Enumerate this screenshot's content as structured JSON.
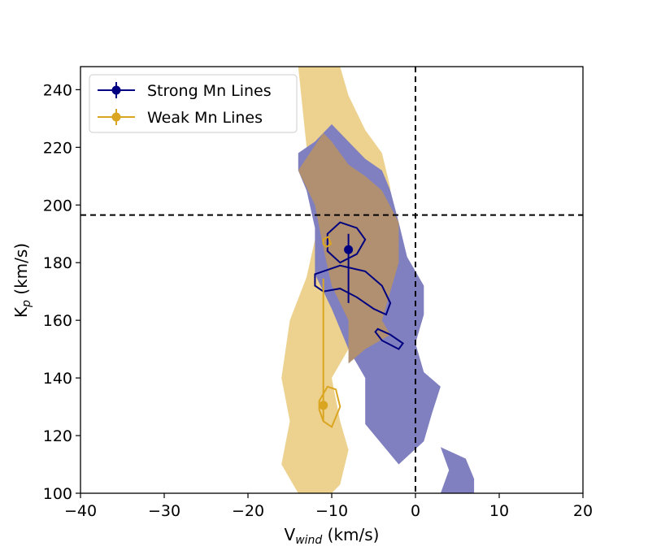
{
  "chart_data": {
    "type": "contour",
    "xlabel": "V",
    "xlabel_sub": "wind",
    "xlabel_unit": " (km/s)",
    "ylabel": "K",
    "ylabel_sub": "p",
    "ylabel_unit": " (km/s)",
    "xlim": [
      -40,
      20
    ],
    "ylim": [
      100,
      248
    ],
    "xticks": [
      -40,
      -30,
      -20,
      -10,
      0,
      10,
      20
    ],
    "xtick_labels": [
      "−40",
      "−30",
      "−20",
      "−10",
      "0",
      "10",
      "20"
    ],
    "yticks": [
      100,
      120,
      140,
      160,
      180,
      200,
      220,
      240
    ],
    "ytick_labels": [
      "100",
      "120",
      "140",
      "160",
      "180",
      "200",
      "220",
      "240"
    ],
    "reference_lines": {
      "vline_x": 0,
      "hline_y": 196.5
    },
    "legend": {
      "placement": "top-left"
    },
    "colors": {
      "strong": "#000080",
      "weak": "#DAA520",
      "strong_fill": "#8080C0",
      "weak_fill": "#EDD28F",
      "overlap_fill": "#B09070"
    },
    "series": [
      {
        "name": "Strong Mn Lines",
        "color": "#000080",
        "x": -8.0,
        "y": 184.5,
        "yerr_low": 18.5,
        "yerr_high": 5.5
      },
      {
        "name": "Weak Mn Lines",
        "color": "#DAA520",
        "x": -11.0,
        "y": 130.5,
        "yerr_low": 5.5,
        "yerr_high": 44.0
      }
    ],
    "regions": {
      "weak_band": [
        [
          -14,
          248
        ],
        [
          -9,
          248
        ],
        [
          -8,
          238
        ],
        [
          -6,
          226
        ],
        [
          -4,
          218
        ],
        [
          -3,
          206
        ],
        [
          -3,
          196
        ],
        [
          -5,
          186
        ],
        [
          -6,
          176
        ],
        [
          -8,
          160
        ],
        [
          -8,
          150
        ],
        [
          -10,
          140
        ],
        [
          -9,
          125
        ],
        [
          -8,
          115
        ],
        [
          -9,
          103
        ],
        [
          -10,
          100
        ],
        [
          -14,
          100
        ],
        [
          -16,
          110
        ],
        [
          -15,
          125
        ],
        [
          -16,
          140
        ],
        [
          -15,
          160
        ],
        [
          -13,
          175
        ],
        [
          -12,
          188
        ],
        [
          -12,
          205
        ],
        [
          -13,
          220
        ]
      ],
      "strong_band": [
        [
          -14,
          218
        ],
        [
          -12,
          222
        ],
        [
          -10,
          228
        ],
        [
          -8,
          222
        ],
        [
          -6,
          216
        ],
        [
          -4,
          212
        ],
        [
          -3,
          205
        ],
        [
          -2,
          194
        ],
        [
          -1,
          182
        ],
        [
          1,
          172
        ],
        [
          1,
          162
        ],
        [
          0,
          152
        ],
        [
          1,
          142
        ],
        [
          3,
          137
        ],
        [
          2,
          128
        ],
        [
          1,
          118
        ],
        [
          -2,
          110
        ],
        [
          -6,
          124
        ],
        [
          -6,
          140
        ],
        [
          -8,
          150
        ],
        [
          -10,
          164
        ],
        [
          -12,
          176
        ],
        [
          -12,
          192
        ],
        [
          -13,
          205
        ],
        [
          -14,
          212
        ]
      ],
      "strong_patch": [
        [
          3,
          116
        ],
        [
          6,
          112
        ],
        [
          7,
          105
        ],
        [
          7,
          100
        ],
        [
          3,
          100
        ],
        [
          4,
          108
        ]
      ],
      "overlap_band": [
        [
          -14,
          212
        ],
        [
          -11,
          225
        ],
        [
          -10,
          222
        ],
        [
          -8,
          214
        ],
        [
          -6,
          210
        ],
        [
          -4,
          205
        ],
        [
          -2,
          194
        ],
        [
          -2,
          180
        ],
        [
          -3,
          170
        ],
        [
          -4,
          160
        ],
        [
          -3,
          155
        ],
        [
          -6,
          150
        ],
        [
          -8,
          145
        ],
        [
          -8,
          160
        ],
        [
          -10,
          172
        ],
        [
          -11,
          185
        ],
        [
          -12,
          200
        ]
      ]
    },
    "contours": {
      "strong": [
        [
          [
            -10.5,
            190
          ],
          [
            -9,
            194
          ],
          [
            -7,
            192
          ],
          [
            -6,
            188
          ],
          [
            -7,
            183
          ],
          [
            -9,
            180
          ],
          [
            -10.5,
            184
          ]
        ],
        [
          [
            -12,
            176
          ],
          [
            -9,
            179
          ],
          [
            -6,
            177
          ],
          [
            -4,
            172
          ],
          [
            -3,
            166
          ],
          [
            -3.5,
            162
          ],
          [
            -5,
            164
          ],
          [
            -7,
            168
          ],
          [
            -9,
            171
          ],
          [
            -11,
            170
          ],
          [
            -12,
            172
          ]
        ],
        [
          [
            -4.5,
            157
          ],
          [
            -3,
            155
          ],
          [
            -1.5,
            152
          ],
          [
            -2,
            150
          ],
          [
            -4,
            153
          ],
          [
            -4.8,
            156
          ]
        ]
      ],
      "weak": [
        [
          [
            -11.5,
            132
          ],
          [
            -10.5,
            137
          ],
          [
            -9.5,
            136
          ],
          [
            -9,
            130
          ],
          [
            -10,
            123
          ],
          [
            -11,
            125
          ],
          [
            -11.5,
            129
          ]
        ],
        [
          [
            -11,
            188
          ],
          [
            -10.4,
            189
          ],
          [
            -10.1,
            186.5
          ],
          [
            -10.6,
            185.5
          ],
          [
            -11,
            186.5
          ]
        ]
      ]
    }
  }
}
